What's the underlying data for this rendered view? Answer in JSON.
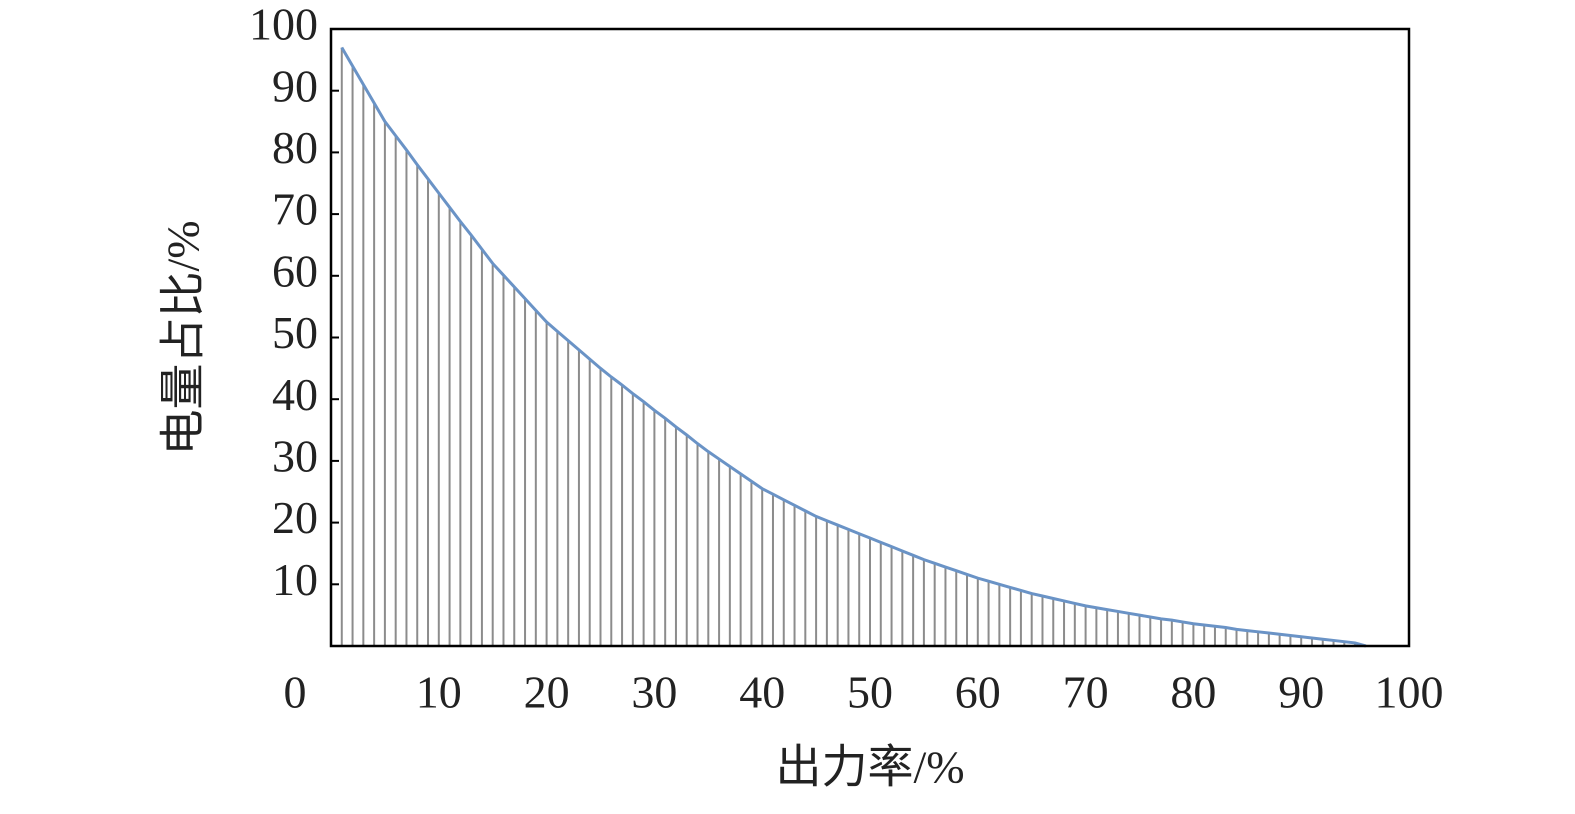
{
  "chart_data": {
    "type": "line",
    "xlabel": "出力率/%",
    "ylabel": "电量占比/%",
    "origin_label": "0",
    "x": [
      1,
      2,
      3,
      4,
      5,
      6,
      7,
      8,
      9,
      10,
      11,
      12,
      13,
      14,
      15,
      16,
      17,
      18,
      19,
      20,
      21,
      22,
      23,
      24,
      25,
      26,
      27,
      28,
      29,
      30,
      31,
      32,
      33,
      34,
      35,
      36,
      37,
      38,
      39,
      40,
      41,
      42,
      43,
      44,
      45,
      46,
      47,
      48,
      49,
      50,
      51,
      52,
      53,
      54,
      55,
      56,
      57,
      58,
      59,
      60,
      61,
      62,
      63,
      64,
      65,
      66,
      67,
      68,
      69,
      70,
      71,
      72,
      73,
      74,
      75,
      76,
      77,
      78,
      79,
      80,
      81,
      82,
      83,
      84,
      85,
      86,
      87,
      88,
      89,
      90,
      91,
      92,
      93,
      94,
      95,
      96
    ],
    "values": [
      97,
      94,
      91,
      88,
      85,
      82.7,
      80.4,
      78,
      75.7,
      73.4,
      71.1,
      68.8,
      66.6,
      64.3,
      62,
      60.1,
      58.2,
      56.3,
      54.4,
      52.5,
      51,
      49.5,
      48,
      46.5,
      45,
      43.6,
      42.3,
      40.9,
      39.6,
      38.2,
      36.9,
      35.5,
      34.2,
      32.8,
      31.5,
      30.3,
      29.1,
      27.9,
      26.7,
      25.5,
      24.6,
      23.7,
      22.8,
      21.9,
      21,
      20.3,
      19.6,
      18.9,
      18.2,
      17.5,
      16.8,
      16.1,
      15.4,
      14.7,
      14,
      13.4,
      12.8,
      12.2,
      11.6,
      11,
      10.5,
      10,
      9.5,
      9,
      8.5,
      8.1,
      7.7,
      7.3,
      6.9,
      6.5,
      6.2,
      5.9,
      5.6,
      5.3,
      5,
      4.7,
      4.4,
      4.2,
      3.9,
      3.6,
      3.4,
      3.2,
      3,
      2.7,
      2.5,
      2.3,
      2.1,
      1.9,
      1.7,
      1.5,
      1.3,
      1.1,
      0.9,
      0.7,
      0.5,
      0
    ],
    "color": "#6a93c6",
    "drop_line_color": "#8c8c8c",
    "drop_lines": true,
    "xlim": [
      0,
      100
    ],
    "ylim": [
      0,
      100
    ],
    "xticks": [
      10,
      20,
      30,
      40,
      50,
      60,
      70,
      80,
      90,
      100
    ],
    "yticks": [
      10,
      20,
      30,
      40,
      50,
      60,
      70,
      80,
      90,
      100
    ]
  }
}
